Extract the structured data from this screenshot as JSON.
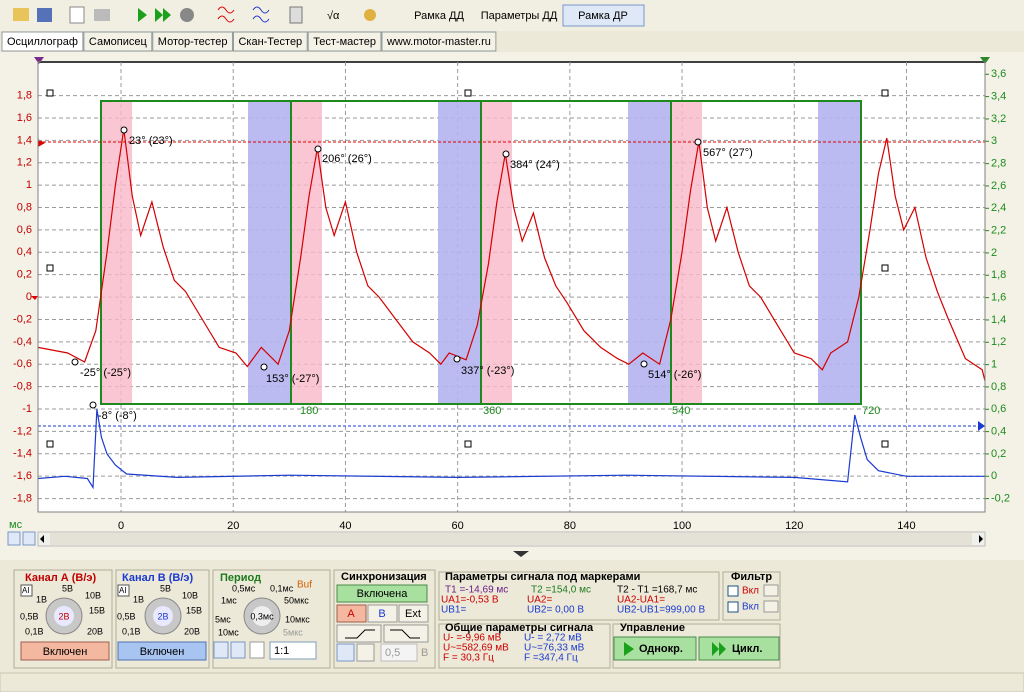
{
  "toolbar": {
    "buttons": [
      "Рамка ДД",
      "Параметры ДД",
      "Рамка ДР"
    ]
  },
  "tabs": [
    "Осциллограф",
    "Самописец",
    "Мотор-тестер",
    "Скан-Тестер",
    "Тест-мастер",
    "www.motor-master.ru"
  ],
  "oscillogram": {
    "x_unit": "мс",
    "xlim": [
      -14.8,
      154
    ],
    "ylim": [
      -1.92,
      2.1
    ],
    "y2lim": [
      -0.32,
      3.71
    ],
    "xticks": [
      0,
      20,
      40,
      60,
      80,
      100,
      120,
      140
    ],
    "yticks": [
      {
        "value": 1.8,
        "label": "1,8"
      },
      {
        "value": 1.6,
        "label": "1,6"
      },
      {
        "value": 1.4,
        "label": "1,4"
      },
      {
        "value": 1.2,
        "label": "1,2"
      },
      1,
      {
        "value": 0.8,
        "label": "0,8"
      },
      {
        "value": 0.6,
        "label": "0,6"
      },
      {
        "value": 0.4,
        "label": "0,4"
      },
      {
        "value": 0.2,
        "label": "0,2"
      },
      0,
      {
        "value": -0.2,
        "label": "-0,2"
      },
      {
        "value": -0.4,
        "label": "-0,4"
      },
      {
        "value": -0.6,
        "label": "-0,6"
      },
      {
        "value": -0.8,
        "label": "-0,8"
      },
      -1,
      {
        "value": -1.2,
        "label": "-1,2"
      },
      {
        "value": -1.4,
        "label": "-1,4"
      },
      {
        "value": -1.6,
        "label": "-1,6"
      },
      {
        "value": -1.8,
        "label": "-1,8"
      }
    ],
    "y2ticks": [
      {
        "value": 3.6,
        "label": "3,6"
      },
      {
        "value": 3.4,
        "label": "3,4"
      },
      {
        "value": 3.2,
        "label": "3,2"
      },
      3,
      {
        "value": 2.8,
        "label": "2,8"
      },
      {
        "value": 2.6,
        "label": "2,6"
      },
      {
        "value": 2.4,
        "label": "2,4"
      },
      {
        "value": 2.2,
        "label": "2,2"
      },
      2,
      {
        "value": 1.8,
        "label": "1,8"
      },
      {
        "value": 1.6,
        "label": "1,6"
      },
      {
        "value": 1.4,
        "label": "1,4"
      },
      {
        "value": 1.2,
        "label": "1,2"
      },
      1,
      {
        "value": 0.8,
        "label": "0,8"
      },
      {
        "value": 0.6,
        "label": "0,6"
      },
      {
        "value": 0.4,
        "label": "0,4"
      },
      {
        "value": 0.2,
        "label": "0,2"
      },
      0,
      {
        "value": -0.2,
        "label": "-0,2"
      }
    ],
    "angle_labels": [
      "180",
      "360",
      "540",
      "720"
    ],
    "markers": [
      "23° (23°)",
      "206° (26°)",
      "384° (24°)",
      "567° (27°)",
      "-25° (-25°)",
      "153° (-27°)",
      "337° (-23°)",
      "514° (-26°)",
      "-8° (-8°)"
    ],
    "series": [
      {
        "color": "#d40000",
        "x": [
          -14.8,
          -9.5,
          -6.5,
          -4.5,
          -2.5,
          -1,
          0.5,
          2,
          3.5,
          5.5,
          7.5,
          9.5,
          11.5,
          14.5,
          17.5,
          20.5,
          22.5,
          25,
          28,
          30,
          32,
          33.5,
          35,
          36.5,
          38,
          40,
          42,
          44,
          46,
          49,
          52,
          55,
          57,
          58.5,
          61.5,
          63.5,
          65.5,
          67,
          68.5,
          70,
          71.5,
          73.5,
          75.5,
          77.5,
          79.5,
          82.5,
          85.5,
          88.5,
          90.5,
          93,
          96,
          98,
          100,
          101.5,
          103,
          104.5,
          106,
          108,
          110,
          112,
          114,
          117,
          120,
          123,
          125,
          126.5,
          129.5,
          131.5,
          133.5,
          135,
          136.5,
          138,
          139.5,
          141.5,
          143.5,
          145.5,
          147.5,
          150.5,
          153.5,
          154
        ],
        "values": [
          -0.45,
          -0.5,
          -0.58,
          -0.3,
          0.4,
          1.0,
          1.5,
          0.9,
          0.55,
          0.85,
          0.45,
          0.15,
          0.05,
          -0.2,
          -0.45,
          -0.5,
          -0.62,
          -0.45,
          -0.6,
          -0.3,
          0.35,
          0.9,
          1.33,
          0.8,
          0.55,
          0.85,
          0.4,
          0.1,
          0.0,
          -0.2,
          -0.4,
          -0.5,
          -0.6,
          -0.5,
          -0.56,
          -0.25,
          0.3,
          0.85,
          1.28,
          0.8,
          0.5,
          0.75,
          0.35,
          0.1,
          -0.05,
          -0.3,
          -0.45,
          -0.55,
          -0.6,
          -0.5,
          -0.6,
          -0.2,
          0.4,
          0.95,
          1.39,
          0.8,
          0.5,
          0.8,
          0.4,
          0.1,
          0.0,
          -0.25,
          -0.5,
          -0.55,
          -0.65,
          -0.5,
          -0.4,
          0.0,
          0.6,
          1.1,
          1.42,
          0.9,
          0.6,
          0.8,
          0.35,
          0.05,
          -0.2,
          -0.55,
          -0.65,
          -0.75
        ]
      },
      {
        "color": "#1a3ad0",
        "axis": "y2",
        "x": [
          -14.8,
          -10,
          -6,
          -5,
          -4.3,
          -3.5,
          -2.5,
          -1,
          1,
          10,
          30,
          60,
          90,
          120,
          129.5,
          130.8,
          131.8,
          133,
          135,
          140,
          154
        ],
        "values": [
          -0.02,
          0,
          -0.02,
          -0.1,
          0.6,
          0.35,
          0.2,
          0.1,
          0.02,
          -0.01,
          0.01,
          -0.01,
          0.01,
          -0.01,
          -0.05,
          0.55,
          0.35,
          0.15,
          0.05,
          0,
          0
        ]
      }
    ]
  },
  "channel_a": {
    "title": "Канал А (В/э)",
    "icon": "AI",
    "scale": [
      "5В",
      "1В",
      "10В",
      "0,5В",
      "15В",
      "0,1В",
      "20В"
    ],
    "knob": "2В",
    "button": "Включен"
  },
  "channel_b": {
    "title": "Канал В (В/э)",
    "icon": "AI",
    "scale": [
      "5В",
      "1В",
      "10В",
      "0,5В",
      "15В",
      "0,1В",
      "20В"
    ],
    "knob": "2В",
    "button": "Включен"
  },
  "period": {
    "title": "Период",
    "buf": "Buf",
    "scale": [
      "0,5мс",
      "0,1мс",
      "1мс",
      "50мкс",
      "5мс",
      "10мкс",
      "10мс",
      "5мкс"
    ],
    "knob": "0,3мс",
    "ratio": "1:1"
  },
  "sync": {
    "title": "Синхронизация",
    "button": "Включена",
    "sources": [
      "A",
      "B",
      "Ext"
    ],
    "level": "0,5",
    "unit": "В"
  },
  "marker_params": {
    "title": "Параметры сигнала под маркерами",
    "cells": [
      "T1 =-14,69 мс",
      "T2 =154,0 мс",
      "T2 - T1 =168,7 мс",
      "UA1=-0,53 В",
      "UA2=",
      "UA2-UA1=",
      "UB1=",
      "UB2= 0,00 В",
      "UB2-UB1=999,00 В"
    ]
  },
  "filter": {
    "title": "Фильтр",
    "options": [
      "Вкл",
      "Вкл"
    ]
  },
  "general_params": {
    "title": "Общие параметры сигнала",
    "cells": [
      "U- =-9,96 мВ",
      "U- = 2,72 мВ",
      "U~=582,69 мВ",
      "U~=76,33 мВ",
      "F = 30,3 Гц",
      "F =347,4 Гц"
    ]
  },
  "control": {
    "title": "Управление",
    "buttons": [
      "Однокр.",
      "Цикл."
    ]
  }
}
